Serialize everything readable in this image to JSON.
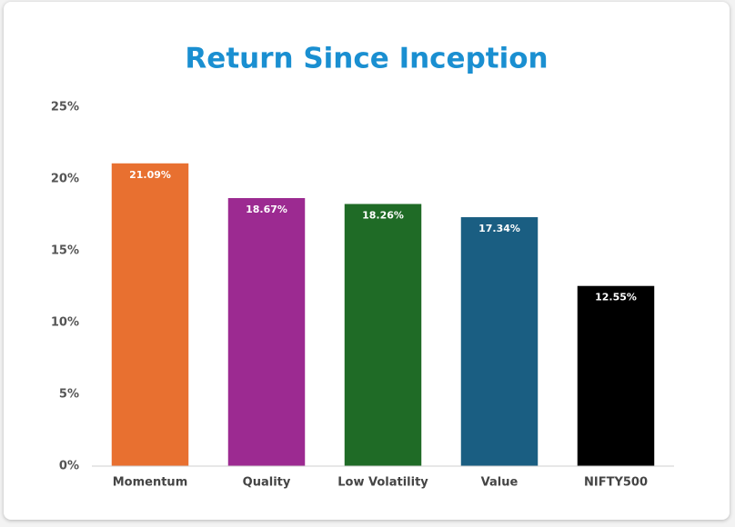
{
  "chart_data": {
    "type": "bar",
    "title": "Return Since Inception",
    "categories": [
      "Momentum",
      "Quality",
      "Low Volatility",
      "Value",
      "NIFTY500"
    ],
    "values": [
      21.09,
      18.67,
      18.26,
      17.34,
      12.55
    ],
    "value_labels": [
      "21.09%",
      "18.67%",
      "18.26%",
      "17.34%",
      "12.55%"
    ],
    "colors": [
      "#e87030",
      "#9c2a91",
      "#1f6b26",
      "#1a5e82",
      "#000000"
    ],
    "ylim": [
      0,
      25
    ],
    "yticks": [
      {
        "value": 0,
        "label": "0%"
      },
      {
        "value": 5,
        "label": "5%"
      },
      {
        "value": 10,
        "label": "10%"
      },
      {
        "value": 15,
        "label": "15%"
      },
      {
        "value": 20,
        "label": "20%"
      },
      {
        "value": 25,
        "label": "25%"
      }
    ],
    "grid": false
  }
}
